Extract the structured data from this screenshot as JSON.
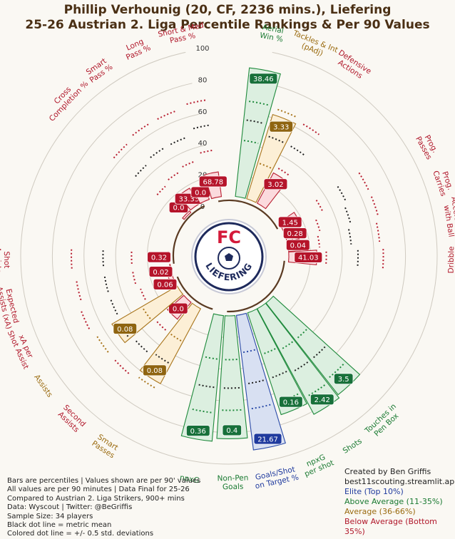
{
  "title": {
    "line1": "Phillip Verhounig (20, CF, 2236 mins.), Liefering",
    "line2": "25-26 Austrian 2. Liga Percentile Rankings & Per 90 Values"
  },
  "logo": {
    "name": "fc-liefering-crest",
    "top_text": "FC",
    "bottom_text": "LIEFERING"
  },
  "footer": {
    "lines": [
      "Bars are percentiles | Values shown are per 90' values",
      "All values are per 90 minutes | Data Final for 25-26",
      "Compared to Austrian 2. Liga Strikers, 900+ mins",
      "Data: Wyscout | Twitter: @BeGriffis",
      "Sample Size: 34 players",
      "Black dot line = metric mean",
      "Colored dot line = +/- 0.5 std. deviations"
    ],
    "credit1": "Created by Ben Griffis",
    "credit2": "best11scouting.streamlit.app",
    "legend": [
      {
        "label": "Elite (Top 10%)",
        "color": "#1f3a9e"
      },
      {
        "label": "Above Average (11-35%)",
        "color": "#1a7a32"
      },
      {
        "label": "Average (36-66%)",
        "color": "#9a6a0e"
      },
      {
        "label": "Below Average (Bottom 35%)",
        "color": "#b0172a"
      }
    ]
  },
  "chart_data": {
    "type": "bar",
    "polar": true,
    "radial_ticks": [
      0,
      20,
      40,
      60,
      80,
      100
    ],
    "ylim": [
      0,
      100
    ],
    "colors": {
      "elite": {
        "fill": "#d8e0f2",
        "stroke": "#2a4aa8",
        "text": "#1f3a9e",
        "label_bg": "#1f3a9e"
      },
      "above": {
        "fill": "#dcefe0",
        "stroke": "#1f8a3c",
        "text": "#1a7a32",
        "label_bg": "#17703a"
      },
      "avg": {
        "fill": "#fcefd6",
        "stroke": "#a8741a",
        "text": "#9a6a0e",
        "label_bg": "#8f6410"
      },
      "below": {
        "fill": "#fbdadd",
        "stroke": "#b81e30",
        "text": "#b0172a",
        "label_bg": "#b5142a"
      }
    },
    "groups": [
      {
        "name": "attacking",
        "arc_start": 95,
        "arc_end": 182
      },
      {
        "name": "ball-progression",
        "arc_start": 197,
        "arc_end": 248
      },
      {
        "name": "creation",
        "arc_start": 262,
        "arc_end": 334
      },
      {
        "name": "passing",
        "arc_start": 349,
        "arc_end": 61
      }
    ],
    "metrics": [
      {
        "label": "Aerial\nWin %",
        "value": "38.46",
        "percentile": 88,
        "tier": "above",
        "mean": 55,
        "sd_low": 42,
        "sd_high": 67,
        "angle": 11
      },
      {
        "label": "Tackles & Int\n(pAdj)",
        "value": "3.33",
        "percentile": 62,
        "tier": "avg",
        "mean": 48,
        "sd_low": 30,
        "sd_high": 66,
        "angle": 22
      },
      {
        "label": "Defensive\nActions",
        "value": "3.02",
        "percentile": 28,
        "tier": "below",
        "mean": 48,
        "sd_low": 32,
        "sd_high": 64,
        "angle": 33
      },
      {
        "label": "Prog.\nPasses",
        "value": "1.45",
        "percentile": 18,
        "tier": "below",
        "mean": 50,
        "sd_low": 34,
        "sd_high": 66,
        "angle": 61
      },
      {
        "label": "Prog.\nCarries",
        "value": "0.28",
        "percentile": 10,
        "tier": "below",
        "mean": 48,
        "sd_low": 28,
        "sd_high": 66,
        "angle": 71
      },
      {
        "label": "Acceleration\nwith Ball",
        "value": "0.04",
        "percentile": 14,
        "tier": "below",
        "mean": 46,
        "sd_low": 26,
        "sd_high": 64,
        "angle": 81
      },
      {
        "label": "Dribble\nSuccess %",
        "value": "41.03",
        "percentile": 24,
        "tier": "below",
        "mean": 50,
        "sd_low": 30,
        "sd_high": 66,
        "angle": 91
      },
      {
        "label": "Touches in\nPen Box",
        "value": "3.5",
        "percentile": 80,
        "tier": "above",
        "mean": 52,
        "sd_low": 36,
        "sd_high": 68,
        "angle": 137
      },
      {
        "label": "Shots",
        "value": "2.42",
        "percentile": 82,
        "tier": "above",
        "mean": 52,
        "sd_low": 36,
        "sd_high": 70,
        "angle": 147
      },
      {
        "label": "npxG\nper shot",
        "value": "0.16",
        "percentile": 74,
        "tier": "above",
        "mean": 50,
        "sd_low": 34,
        "sd_high": 66,
        "angle": 157
      },
      {
        "label": "Goals/Shot\non Target %",
        "value": "21.67",
        "percentile": 92,
        "tier": "elite",
        "mean": 50,
        "sd_low": 30,
        "sd_high": 66,
        "angle": 168
      },
      {
        "label": "Non-Pen\nGoals",
        "value": "0.4",
        "percentile": 84,
        "tier": "above",
        "mean": 52,
        "sd_low": 34,
        "sd_high": 66,
        "angle": 179
      },
      {
        "label": "npxG",
        "value": "0.36",
        "percentile": 86,
        "tier": "above",
        "mean": 52,
        "sd_low": 34,
        "sd_high": 68,
        "angle": 190
      },
      {
        "label": "Smart\nPasses",
        "value": "0.08",
        "percentile": 60,
        "tier": "avg",
        "mean": 46,
        "sd_low": 30,
        "sd_high": 64,
        "angle": 213
      },
      {
        "label": "Second\nAssists",
        "value": "0.0",
        "percentile": 20,
        "tier": "below",
        "mean": 48,
        "sd_low": 30,
        "sd_high": 66,
        "angle": 224
      },
      {
        "label": "Assists",
        "value": "0.08",
        "percentile": 54,
        "tier": "avg",
        "mean": 50,
        "sd_low": 32,
        "sd_high": 66,
        "angle": 235
      },
      {
        "label": "xA per\nShot Assist",
        "value": "0.06",
        "percentile": 9,
        "tier": "below",
        "mean": 48,
        "sd_low": 28,
        "sd_high": 68,
        "angle": 246
      },
      {
        "label": "Expected\nAssists (xA)",
        "value": "0.02",
        "percentile": 6,
        "tier": "below",
        "mean": 48,
        "sd_low": 30,
        "sd_high": 66,
        "angle": 257
      },
      {
        "label": "Shot\nAssists",
        "value": "0.32",
        "percentile": 7,
        "tier": "below",
        "mean": 48,
        "sd_low": 30,
        "sd_high": 68,
        "angle": 269
      },
      {
        "label": "Cross\nCompletion %",
        "value": "0.0",
        "percentile": 5,
        "tier": "below",
        "mean": 46,
        "sd_low": 28,
        "sd_high": 64,
        "angle": 314
      },
      {
        "label": "Smart\nPass %",
        "value": "33.33",
        "percentile": 18,
        "tier": "below",
        "mean": 48,
        "sd_low": 30,
        "sd_high": 66,
        "angle": 325
      },
      {
        "label": "Long\nPass %",
        "value": "0.0",
        "percentile": 12,
        "tier": "below",
        "mean": 48,
        "sd_low": 32,
        "sd_high": 66,
        "angle": 336
      },
      {
        "label": "Short & Med\nPass %",
        "value": "68.78",
        "percentile": 22,
        "tier": "below",
        "mean": 52,
        "sd_low": 36,
        "sd_high": 68,
        "angle": 348
      }
    ]
  }
}
